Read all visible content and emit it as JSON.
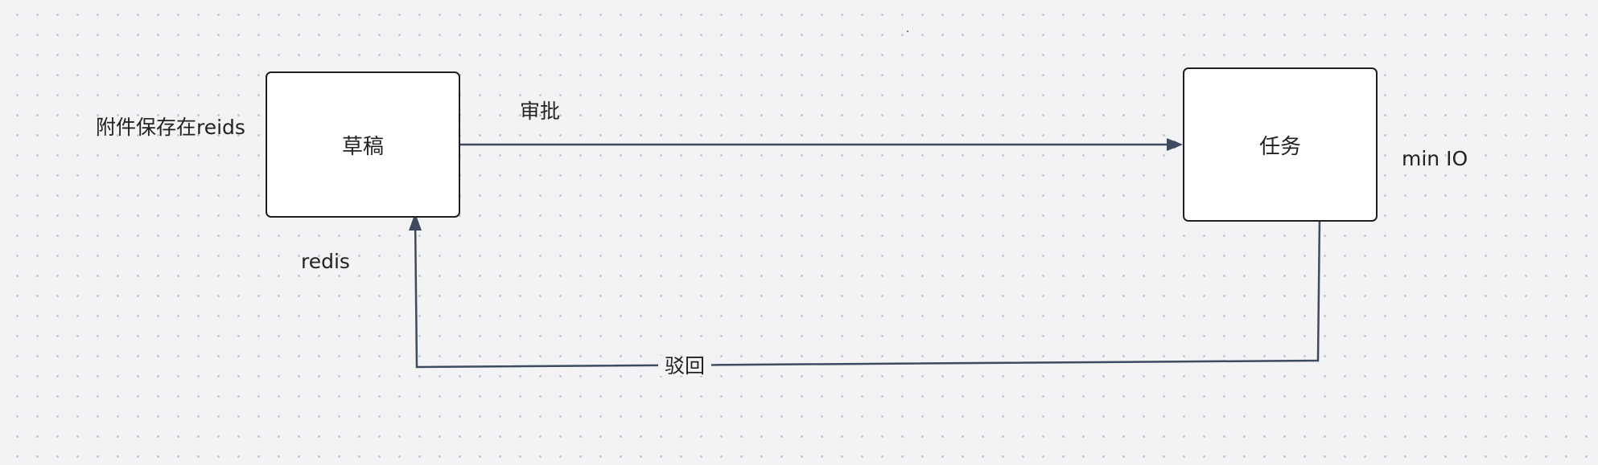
{
  "nodes": {
    "draft": {
      "label": "草稿"
    },
    "task": {
      "label": "任务"
    }
  },
  "labels": {
    "attachment_note": "附件保存在reids",
    "draft_storage": "redis",
    "task_storage": "min IO"
  },
  "edges": {
    "approve": {
      "label": "审批",
      "from": "draft",
      "to": "task"
    },
    "reject": {
      "label": "驳回",
      "from": "task",
      "to": "draft"
    }
  },
  "colors": {
    "edge": "#3d4a5f",
    "node_border": "#1f1f1f",
    "node_fill": "#ffffff"
  }
}
